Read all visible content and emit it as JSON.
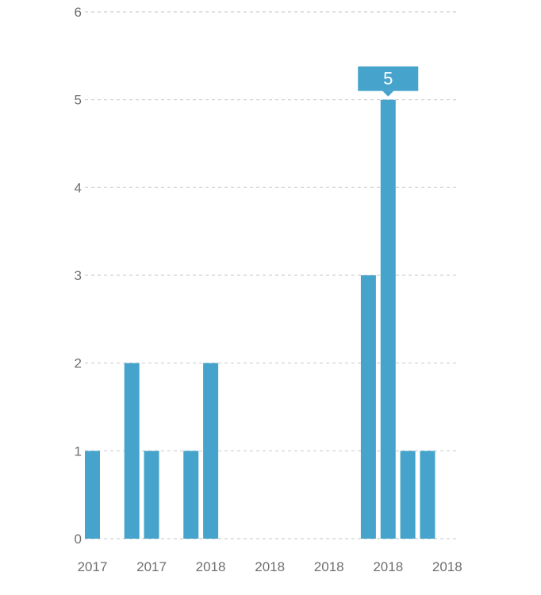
{
  "chart_data": {
    "type": "bar",
    "categories": [
      "2017",
      "",
      "",
      "2017",
      "",
      "",
      "2018",
      "",
      "",
      "2018",
      "",
      "",
      "2018",
      "",
      "",
      "2018",
      "",
      "",
      "2018"
    ],
    "values": [
      1,
      0,
      2,
      1,
      0,
      1,
      2,
      0,
      0,
      0,
      0,
      0,
      0,
      0,
      3,
      5,
      1,
      1,
      0
    ],
    "y_ticks": [
      "0",
      "1",
      "2",
      "3",
      "4",
      "5",
      "6"
    ],
    "ylim": [
      0,
      6
    ],
    "grid": true,
    "highlight": {
      "index": 15,
      "label": "5"
    },
    "colors": {
      "bar": "#45a3cc",
      "tooltip": "#45a3cc",
      "grid": "#cfcfcf",
      "tick_text": "#6f6f6f"
    }
  }
}
